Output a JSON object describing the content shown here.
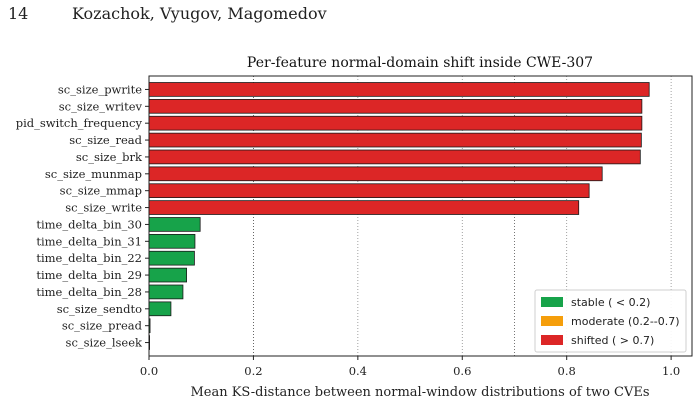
{
  "header": {
    "page_number": "14",
    "authors": "Kozachok, Vyugov, Magomedov"
  },
  "colors": {
    "stable": "#17a34a",
    "moderate": "#f59e0b",
    "shifted": "#dc2626",
    "edge": "#1a1a1a",
    "grid": "#8a8a8a"
  },
  "chart_data": {
    "type": "bar",
    "orientation": "horizontal",
    "title": "Per-feature normal-domain shift inside CWE-307",
    "xlabel": "Mean KS-distance between normal-window distributions of two CVEs",
    "ylabel": "",
    "xlim": [
      0.0,
      1.04
    ],
    "xticks": [
      "0.0",
      "0.2",
      "0.4",
      "0.6",
      "0.8",
      "1.0"
    ],
    "xtick_values": [
      0.0,
      0.2,
      0.4,
      0.6,
      0.8,
      1.0
    ],
    "grid": "vertical dotted",
    "threshold_lines": [
      0.2,
      0.7
    ],
    "categories": [
      "sc_size_pwrite",
      "sc_size_writev",
      "pid_switch_frequency",
      "sc_size_read",
      "sc_size_brk",
      "sc_size_munmap",
      "sc_size_mmap",
      "sc_size_write",
      "time_delta_bin_30",
      "time_delta_bin_31",
      "time_delta_bin_22",
      "time_delta_bin_29",
      "time_delta_bin_28",
      "sc_size_sendto",
      "sc_size_pread",
      "sc_size_lseek"
    ],
    "values": [
      0.958,
      0.944,
      0.944,
      0.943,
      0.941,
      0.868,
      0.843,
      0.823,
      0.098,
      0.088,
      0.087,
      0.072,
      0.065,
      0.042,
      0.002,
      0.001
    ],
    "classes": [
      "shifted",
      "shifted",
      "shifted",
      "shifted",
      "shifted",
      "shifted",
      "shifted",
      "shifted",
      "stable",
      "stable",
      "stable",
      "stable",
      "stable",
      "stable",
      "stable",
      "stable"
    ],
    "legend": {
      "position": "lower-right",
      "entries": [
        {
          "key": "stable",
          "label": "stable ( < 0.2)"
        },
        {
          "key": "moderate",
          "label": "moderate (0.2--0.7)"
        },
        {
          "key": "shifted",
          "label": "shifted ( > 0.7)"
        }
      ]
    }
  }
}
